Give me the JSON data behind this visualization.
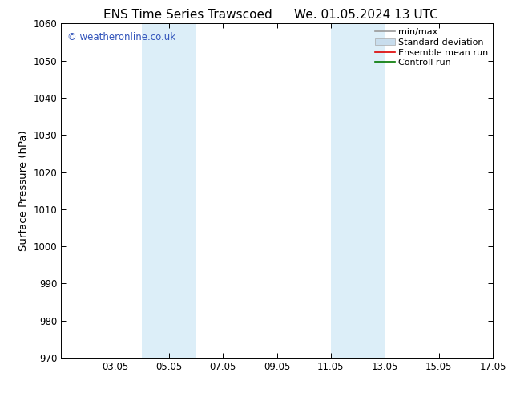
{
  "title_left": "ENS Time Series Trawscoed",
  "title_right": "We. 01.05.2024 13 UTC",
  "ylabel": "Surface Pressure (hPa)",
  "ylim": [
    970,
    1060
  ],
  "yticks": [
    970,
    980,
    990,
    1000,
    1010,
    1020,
    1030,
    1040,
    1050,
    1060
  ],
  "xlim": [
    1,
    17
  ],
  "xticks": [
    3,
    5,
    7,
    9,
    11,
    13,
    15,
    17
  ],
  "xticklabels": [
    "03.05",
    "05.05",
    "07.05",
    "09.05",
    "11.05",
    "13.05",
    "15.05",
    "17.05"
  ],
  "bg_color": "#ffffff",
  "plot_bg_color": "#ffffff",
  "shaded_bands": [
    {
      "x_start": 4.0,
      "x_end": 6.0
    },
    {
      "x_start": 11.0,
      "x_end": 13.0
    }
  ],
  "shaded_color": "#dceef8",
  "watermark_text": "© weatheronline.co.uk",
  "watermark_color": "#3355bb",
  "legend_items": [
    {
      "label": "min/max",
      "color": "#999999",
      "lw": 1.2,
      "style": "line"
    },
    {
      "label": "Standard deviation",
      "color": "#c8dded",
      "lw": 7,
      "style": "bar"
    },
    {
      "label": "Ensemble mean run",
      "color": "#dd0000",
      "lw": 1.2,
      "style": "line"
    },
    {
      "label": "Controll run",
      "color": "#007700",
      "lw": 1.2,
      "style": "line"
    }
  ],
  "title_fontsize": 11,
  "tick_fontsize": 8.5,
  "label_fontsize": 9.5,
  "legend_fontsize": 8
}
